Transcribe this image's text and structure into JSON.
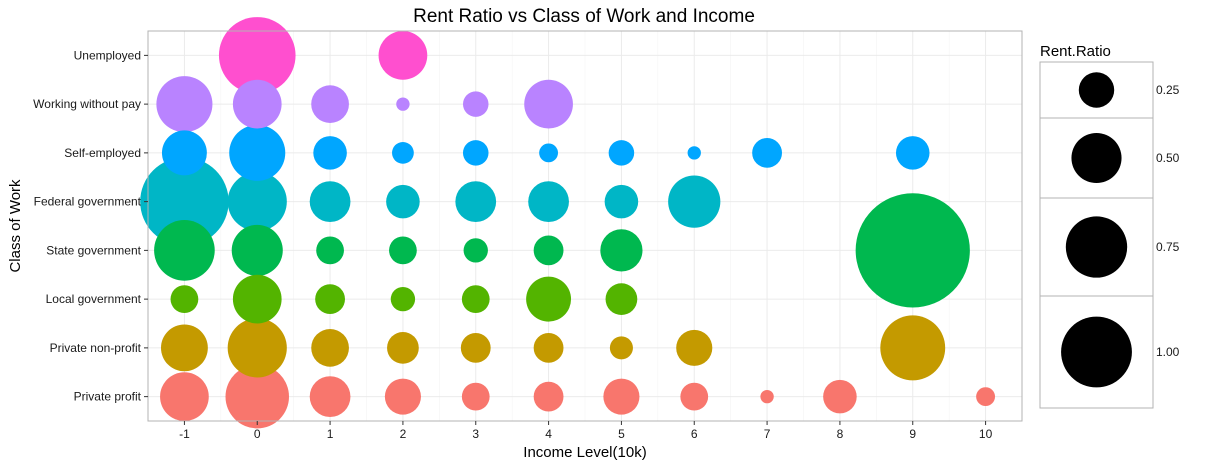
{
  "chart_data": {
    "type": "scatter",
    "title": "Rent Ratio vs Class of Work and Income",
    "xlabel": "Income Level(10k)",
    "ylabel": "Class of Work",
    "x_ticks": [
      -1,
      0,
      1,
      2,
      3,
      4,
      5,
      6,
      7,
      8,
      9,
      10
    ],
    "xlim": [
      -1.5,
      10.5
    ],
    "categories": [
      "Private profit",
      "Private non-profit",
      "Local government",
      "State government",
      "Federal government",
      "Self-employed",
      "Working without pay",
      "Unemployed"
    ],
    "grid": true,
    "size_legend": {
      "title": "Rent.Ratio",
      "placement": "right",
      "breaks": [
        0.25,
        0.5,
        0.75,
        1.0
      ],
      "labels": [
        "0.25",
        "0.50",
        "0.75",
        "1.00"
      ]
    },
    "series": [
      {
        "category": "Private profit",
        "color": "#F8766D",
        "points": [
          {
            "x": -1,
            "size": 0.4
          },
          {
            "x": 0,
            "size": 0.68
          },
          {
            "x": 1,
            "size": 0.28
          },
          {
            "x": 2,
            "size": 0.22
          },
          {
            "x": 3,
            "size": 0.13
          },
          {
            "x": 4,
            "size": 0.15
          },
          {
            "x": 5,
            "size": 0.22
          },
          {
            "x": 6,
            "size": 0.13
          },
          {
            "x": 7,
            "size": 0.03
          },
          {
            "x": 8,
            "size": 0.19
          },
          {
            "x": 10,
            "size": 0.06
          }
        ]
      },
      {
        "category": "Private non-profit",
        "color": "#C49A00",
        "points": [
          {
            "x": -1,
            "size": 0.37
          },
          {
            "x": 0,
            "size": 0.59
          },
          {
            "x": 1,
            "size": 0.24
          },
          {
            "x": 2,
            "size": 0.17
          },
          {
            "x": 3,
            "size": 0.15
          },
          {
            "x": 4,
            "size": 0.15
          },
          {
            "x": 5,
            "size": 0.09
          },
          {
            "x": 6,
            "size": 0.22
          },
          {
            "x": 9,
            "size": 0.71
          }
        ]
      },
      {
        "category": "Local government",
        "color": "#53B400",
        "points": [
          {
            "x": -1,
            "size": 0.13
          },
          {
            "x": 0,
            "size": 0.4
          },
          {
            "x": 1,
            "size": 0.15
          },
          {
            "x": 2,
            "size": 0.1
          },
          {
            "x": 3,
            "size": 0.13
          },
          {
            "x": 4,
            "size": 0.34
          },
          {
            "x": 5,
            "size": 0.17
          }
        ]
      },
      {
        "category": "State government",
        "color": "#00B84F",
        "points": [
          {
            "x": -1,
            "size": 0.62
          },
          {
            "x": 0,
            "size": 0.44
          },
          {
            "x": 1,
            "size": 0.13
          },
          {
            "x": 2,
            "size": 0.13
          },
          {
            "x": 3,
            "size": 0.1
          },
          {
            "x": 4,
            "size": 0.15
          },
          {
            "x": 5,
            "size": 0.3
          },
          {
            "x": 9,
            "size": 2.2
          }
        ]
      },
      {
        "category": "Federal government",
        "color": "#00B6C6",
        "points": [
          {
            "x": -1,
            "size": 1.32
          },
          {
            "x": 0,
            "size": 0.59
          },
          {
            "x": 1,
            "size": 0.28
          },
          {
            "x": 2,
            "size": 0.19
          },
          {
            "x": 3,
            "size": 0.28
          },
          {
            "x": 4,
            "size": 0.28
          },
          {
            "x": 5,
            "size": 0.19
          },
          {
            "x": 6,
            "size": 0.46
          }
        ]
      },
      {
        "category": "Self-employed",
        "color": "#00A6FF",
        "points": [
          {
            "x": -1,
            "size": 0.34
          },
          {
            "x": 0,
            "size": 0.53
          },
          {
            "x": 1,
            "size": 0.19
          },
          {
            "x": 2,
            "size": 0.08
          },
          {
            "x": 3,
            "size": 0.11
          },
          {
            "x": 4,
            "size": 0.06
          },
          {
            "x": 5,
            "size": 0.11
          },
          {
            "x": 6,
            "size": 0.03
          },
          {
            "x": 7,
            "size": 0.15
          },
          {
            "x": 9,
            "size": 0.19
          }
        ]
      },
      {
        "category": "Working without pay",
        "color": "#B983FF",
        "points": [
          {
            "x": -1,
            "size": 0.53
          },
          {
            "x": 0,
            "size": 0.4
          },
          {
            "x": 1,
            "size": 0.24
          },
          {
            "x": 2,
            "size": 0.03
          },
          {
            "x": 3,
            "size": 0.11
          },
          {
            "x": 4,
            "size": 0.4
          }
        ]
      },
      {
        "category": "Unemployed",
        "color": "#FF4FCF",
        "points": [
          {
            "x": 0,
            "size": 0.99
          },
          {
            "x": 2,
            "size": 0.4
          }
        ]
      }
    ]
  }
}
